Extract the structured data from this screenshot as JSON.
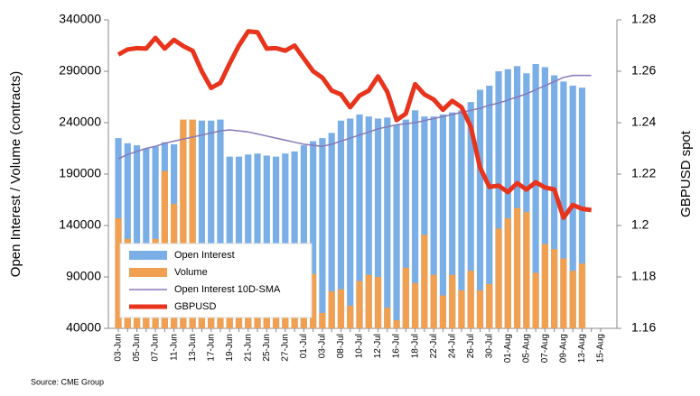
{
  "chart_data": {
    "type": "bar",
    "y_label": "Open Interest / Volume (contracts)",
    "y2_label": "GBPUSD spot",
    "source": "Source: CME Group",
    "categories": [
      "03-Jun",
      null,
      "05-Jun",
      null,
      "07-Jun",
      null,
      "11-Jun",
      null,
      "13-Jun",
      null,
      "17-Jun",
      null,
      "19-Jun",
      null,
      "21-Jun",
      null,
      "25-Jun",
      null,
      "27-Jun",
      null,
      "01-Jul",
      null,
      "03-Jul",
      null,
      "08-Jul",
      null,
      "10-Jul",
      null,
      "12-Jul",
      null,
      "16-Jul",
      null,
      "18-Jul",
      null,
      "22-Jul",
      null,
      "24-Jul",
      null,
      "26-Jul",
      null,
      "30-Jul",
      null,
      "01-Aug",
      null,
      "05-Aug",
      null,
      "07-Aug",
      null,
      "09-Aug",
      null,
      "13-Aug",
      null,
      "15-Aug"
    ],
    "series": [
      {
        "name": "Open Interest",
        "type": "bar",
        "color": "#7aaee6",
        "values": [
          225000,
          220000,
          218000,
          215000,
          217000,
          221000,
          219000,
          238000,
          242000,
          242000,
          242000,
          243000,
          207000,
          207000,
          209000,
          210000,
          208000,
          207000,
          210000,
          212000,
          218000,
          222000,
          225000,
          230000,
          242000,
          244000,
          248000,
          246000,
          244000,
          245000,
          238000,
          243000,
          252000,
          246000,
          246000,
          248000,
          250000,
          252000,
          260000,
          272000,
          276000,
          290000,
          292000,
          295000,
          288000,
          297000,
          294000,
          286000,
          280000,
          276000,
          274000,
          null,
          null
        ]
      },
      {
        "name": "Volume",
        "type": "bar",
        "color": "#f0a050",
        "values": [
          147000,
          127000,
          88000,
          90000,
          127000,
          193000,
          161000,
          243000,
          243000,
          95000,
          85000,
          80000,
          75000,
          70000,
          78000,
          72000,
          80000,
          76000,
          82000,
          88000,
          90000,
          93000,
          55000,
          76000,
          78000,
          62000,
          86000,
          92000,
          90000,
          60000,
          48000,
          99000,
          84000,
          131000,
          92000,
          72000,
          92000,
          77000,
          96000,
          77000,
          83000,
          137000,
          147000,
          157000,
          153000,
          94000,
          122000,
          117000,
          108000,
          96000,
          103000,
          null,
          null
        ]
      },
      {
        "name": "Open Interest 10D-SMA",
        "type": "line",
        "color": "#8878b8",
        "values": [
          205000,
          209000,
          212000,
          215000,
          217000,
          220000,
          222000,
          224000,
          226000,
          228000,
          230000,
          232000,
          233000,
          232000,
          231000,
          229000,
          227000,
          225000,
          223000,
          221000,
          219000,
          218000,
          217000,
          219000,
          222000,
          225000,
          228000,
          231000,
          234000,
          236000,
          238000,
          239000,
          240000,
          242000,
          244000,
          246000,
          248000,
          250000,
          252000,
          254000,
          257000,
          259000,
          262000,
          265000,
          268000,
          272000,
          276000,
          280000,
          284000,
          286000,
          286000,
          286000,
          null
        ]
      },
      {
        "name": "GBPUSD",
        "type": "line",
        "axis": "y2",
        "color": "#e8341c",
        "values": [
          1.2665,
          1.2685,
          1.269,
          1.2688,
          1.273,
          1.2688,
          1.2722,
          1.2698,
          1.268,
          1.26,
          1.2535,
          1.2555,
          1.263,
          1.27,
          1.2755,
          1.2752,
          1.2688,
          1.269,
          1.268,
          1.27,
          1.265,
          1.26,
          1.2575,
          1.2525,
          1.251,
          1.246,
          1.2505,
          1.2525,
          1.258,
          1.252,
          1.241,
          1.2435,
          1.255,
          1.251,
          1.249,
          1.245,
          1.2485,
          1.246,
          1.2385,
          1.2225,
          1.215,
          1.2155,
          1.213,
          1.2165,
          1.214,
          1.2168,
          1.2148,
          1.214,
          1.203,
          1.208,
          1.2065,
          1.206,
          null
        ]
      }
    ],
    "ylim": [
      40000,
      340000
    ],
    "yticks": [
      40000,
      90000,
      140000,
      190000,
      240000,
      290000,
      340000
    ],
    "y2lim": [
      1.16,
      1.28
    ],
    "y2ticks": [
      1.16,
      1.18,
      1.2,
      1.22,
      1.24,
      1.26,
      1.28
    ]
  }
}
